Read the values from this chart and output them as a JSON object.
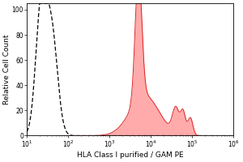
{
  "title": "",
  "xlabel": "HLA Class I purified / GAM PE",
  "ylabel": "Relative Cell Count",
  "xlim_log": [
    10,
    1000000
  ],
  "ylim": [
    0,
    105
  ],
  "yticks": [
    0,
    20,
    40,
    60,
    80,
    100
  ],
  "ytick_labels": [
    "0",
    "20",
    "40",
    "60",
    "80",
    "100"
  ],
  "background_color": "#ffffff",
  "dashed_peak_x": 22,
  "dashed_peak_y": 100,
  "dashed_sigma": 0.13,
  "dashed_peak2_x": 40,
  "dashed_peak2_y": 80,
  "dashed_peak2_sigma": 0.14,
  "red_spike_x": 5000,
  "red_spike_y": 100,
  "red_spike_sigma": 0.08,
  "red_broad_x": 7000,
  "red_broad_y": 32,
  "red_broad_sigma": 0.35,
  "red_bump1_x": 40000,
  "red_bump1_y": 20,
  "red_bump1_sigma": 0.08,
  "red_bump2_x": 60000,
  "red_bump2_y": 18,
  "red_bump2_sigma": 0.06,
  "red_bump3_x": 90000,
  "red_bump3_y": 14,
  "red_bump3_sigma": 0.06,
  "red_color": "#ff8888",
  "red_edge_color": "#dd2222",
  "red_alpha": 0.7,
  "dashed_line_color": "black",
  "fontsize_label": 6.5,
  "fontsize_tick": 5.5,
  "figsize": [
    3.0,
    2.0
  ],
  "dpi": 100
}
